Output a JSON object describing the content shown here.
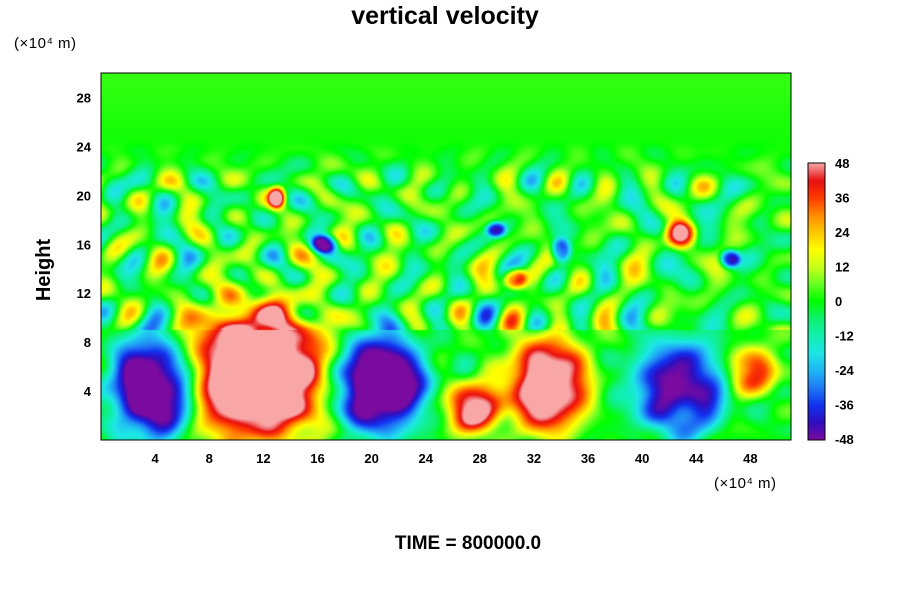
{
  "chart_data": {
    "type": "heatmap",
    "title": "vertical velocity",
    "ylabel": "Height",
    "x_unit_label": "(×10⁴ m)",
    "y_unit_label": "(×10⁴ m)",
    "xlim": [
      0,
      51
    ],
    "ylim": [
      0,
      30
    ],
    "x_ticks": [
      4,
      8,
      12,
      16,
      20,
      24,
      28,
      32,
      36,
      40,
      44,
      48
    ],
    "y_ticks": [
      4,
      8,
      12,
      16,
      20,
      24,
      28
    ],
    "color_range": [
      -48,
      48
    ],
    "colorbar_ticks": [
      48,
      36,
      24,
      12,
      0,
      -12,
      -24,
      -36,
      -48
    ],
    "colorbar_stops": [
      {
        "value": -48,
        "color": "#7a0aa0"
      },
      {
        "value": -42,
        "color": "#2e0fc0"
      },
      {
        "value": -36,
        "color": "#1232f0"
      },
      {
        "value": -30,
        "color": "#1f7af5"
      },
      {
        "value": -24,
        "color": "#1fb6f5"
      },
      {
        "value": -18,
        "color": "#1ee6e6"
      },
      {
        "value": -12,
        "color": "#10f0b0"
      },
      {
        "value": -6,
        "color": "#10f070"
      },
      {
        "value": 0,
        "color": "#00ff00"
      },
      {
        "value": 6,
        "color": "#66ff22"
      },
      {
        "value": 12,
        "color": "#c8ff1a"
      },
      {
        "value": 18,
        "color": "#ffff00"
      },
      {
        "value": 24,
        "color": "#ffc800"
      },
      {
        "value": 30,
        "color": "#ff8c00"
      },
      {
        "value": 36,
        "color": "#ff3c00"
      },
      {
        "value": 42,
        "color": "#e81010"
      },
      {
        "value": 48,
        "color": "#f8a6a6"
      }
    ],
    "features": [
      {
        "name": "downdraft",
        "x": 4.0,
        "y": 4.3,
        "sx": 2.7,
        "sy": 3.4,
        "amp": -62
      },
      {
        "name": "updraft",
        "x": 11.5,
        "y": 5.5,
        "sx": 4.6,
        "sy": 4.6,
        "amp": 66
      },
      {
        "name": "downdraft",
        "x": 20.5,
        "y": 4.6,
        "sx": 2.9,
        "sy": 3.3,
        "amp": -62
      },
      {
        "name": "updraft",
        "x": 27.6,
        "y": 2.6,
        "sx": 1.7,
        "sy": 1.7,
        "amp": 50
      },
      {
        "name": "updraft",
        "x": 33.0,
        "y": 4.5,
        "sx": 2.5,
        "sy": 3.2,
        "amp": 58
      },
      {
        "name": "downdraft",
        "x": 42.8,
        "y": 4.3,
        "sx": 3.0,
        "sy": 3.2,
        "amp": -46
      },
      {
        "name": "updraft",
        "x": 48.0,
        "y": 5.6,
        "sx": 1.6,
        "sy": 1.6,
        "amp": 38
      },
      {
        "name": "updraft",
        "x": 30.6,
        "y": 13.2,
        "sx": 0.7,
        "sy": 0.7,
        "amp": 45
      },
      {
        "name": "updraft",
        "x": 13.0,
        "y": 19.8,
        "sx": 0.5,
        "sy": 0.7,
        "amp": 45
      },
      {
        "name": "updraft",
        "x": 42.8,
        "y": 16.8,
        "sx": 0.9,
        "sy": 0.9,
        "amp": 45
      },
      {
        "name": "downdraft",
        "x": 46.5,
        "y": 14.8,
        "sx": 0.6,
        "sy": 0.6,
        "amp": -42
      },
      {
        "name": "downdraft",
        "x": 34.0,
        "y": 15.5,
        "sx": 0.6,
        "sy": 0.8,
        "amp": -40
      },
      {
        "name": "downdraft",
        "x": 16.5,
        "y": 16.0,
        "sx": 0.8,
        "sy": 0.6,
        "amp": -38
      },
      {
        "name": "downdraft",
        "x": 29.2,
        "y": 17.2,
        "sx": 0.6,
        "sy": 0.5,
        "amp": -36
      }
    ]
  },
  "time_label": "TIME = 800000.0"
}
